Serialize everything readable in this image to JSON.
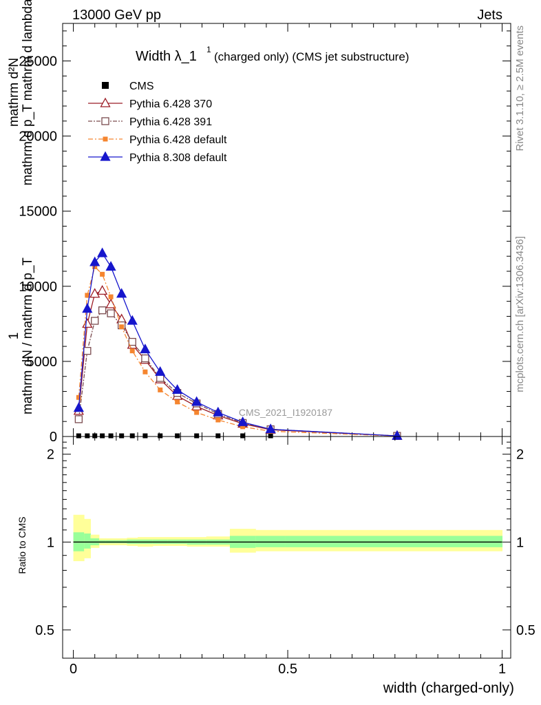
{
  "header": {
    "left": "13000 GeV pp",
    "right": "Jets"
  },
  "side_labels": {
    "rivet": "Rivet 3.1.10, ≥ 2.5M events",
    "mcplots": "mcplots.cern.ch [arXiv:1306.3436]"
  },
  "watermark": "CMS_2021_I1920187",
  "chart_data": [
    {
      "type": "line",
      "title": "Width λ_1¹ (charged only) (CMS jet substructure)",
      "title_main": "Width λ_1",
      "title_sup": "1",
      "title_sub": "(charged only) (CMS jet substructure)",
      "ylabel_lines": [
        "mathrm d²N",
        "mathrm d p_T mathrm d lambda",
        "1",
        "mathrm dN / mathrm d p_T"
      ],
      "xlabel": "width (charged-only)",
      "xlim": [
        -0.025,
        1.02
      ],
      "ylim": [
        0,
        27500
      ],
      "yticks": [
        0,
        5000,
        10000,
        15000,
        20000,
        25000
      ],
      "ytick_labels": [
        "0",
        "5000",
        "10000",
        "15000",
        "20000",
        "25000"
      ],
      "legend_position": "top-left",
      "grid": false,
      "x": [
        0.0125,
        0.0325,
        0.05,
        0.0675,
        0.0875,
        0.1125,
        0.1375,
        0.1675,
        0.2025,
        0.2425,
        0.2875,
        0.3375,
        0.395,
        0.46,
        0.755
      ],
      "series": [
        {
          "name": "CMS",
          "style": "data",
          "color": "#000000",
          "values": [
            0,
            0,
            0,
            0,
            0,
            0,
            0,
            0,
            0,
            0,
            0,
            0,
            0,
            0,
            0
          ]
        },
        {
          "name": "Pythia 6.428 370",
          "style": "open-triangle",
          "color": "#9b1b24",
          "dash": "",
          "values": [
            1700,
            7500,
            9500,
            9700,
            8800,
            7800,
            6100,
            5100,
            3800,
            2700,
            2000,
            1400,
            850,
            450,
            40
          ]
        },
        {
          "name": "Pythia 6.428 391",
          "style": "open-square",
          "color": "#7a4a4d",
          "dash": "6,2,2,2",
          "values": [
            1150,
            5700,
            7700,
            8400,
            8200,
            7400,
            6300,
            5200,
            3900,
            2900,
            2200,
            1500,
            900,
            480,
            40
          ]
        },
        {
          "name": "Pythia 6.428 default",
          "style": "filled-square",
          "color": "#f5852f",
          "dash": "7,3,2,3",
          "values": [
            2600,
            9400,
            11300,
            10800,
            9300,
            7300,
            5700,
            4300,
            3100,
            2300,
            1600,
            1100,
            650,
            350,
            30
          ]
        },
        {
          "name": "Pythia 8.308 default",
          "style": "filled-triangle",
          "color": "#1616cc",
          "dash": "",
          "values": [
            1900,
            8500,
            11600,
            12200,
            11300,
            9500,
            7700,
            5800,
            4300,
            3100,
            2300,
            1600,
            950,
            480,
            40
          ]
        }
      ]
    },
    {
      "type": "area",
      "ylabel": "Ratio to CMS",
      "ylim": [
        0.4,
        2.3
      ],
      "yscale": "log",
      "yticks": [
        0.5,
        1,
        2
      ],
      "ytick_labels": [
        "0.5",
        "1",
        "2"
      ],
      "xticks": [
        0,
        0.5,
        1
      ],
      "xtick_labels": [
        "0",
        "0.5",
        "1"
      ],
      "reference_line": 1,
      "bin_edges": [
        0.0,
        0.025,
        0.04,
        0.06,
        0.075,
        0.1,
        0.125,
        0.15,
        0.185,
        0.22,
        0.265,
        0.31,
        0.365,
        0.425,
        0.495,
        1.0
      ],
      "band_outer": {
        "color": "#ffff99",
        "low": [
          0.86,
          0.88,
          0.955,
          0.975,
          0.975,
          0.975,
          0.97,
          0.965,
          0.97,
          0.97,
          0.965,
          0.965,
          0.92,
          0.93,
          0.93
        ],
        "high": [
          1.24,
          1.2,
          1.06,
          1.03,
          1.03,
          1.03,
          1.035,
          1.04,
          1.04,
          1.04,
          1.04,
          1.045,
          1.11,
          1.1,
          1.1
        ]
      },
      "band_inner": {
        "color": "#99ff99",
        "low": [
          0.93,
          0.95,
          0.975,
          0.99,
          0.99,
          0.99,
          0.985,
          0.985,
          0.985,
          0.985,
          0.98,
          0.98,
          0.955,
          0.96,
          0.96
        ],
        "high": [
          1.08,
          1.07,
          1.03,
          1.015,
          1.015,
          1.015,
          1.02,
          1.02,
          1.02,
          1.02,
          1.02,
          1.02,
          1.05,
          1.05,
          1.05
        ]
      }
    }
  ]
}
